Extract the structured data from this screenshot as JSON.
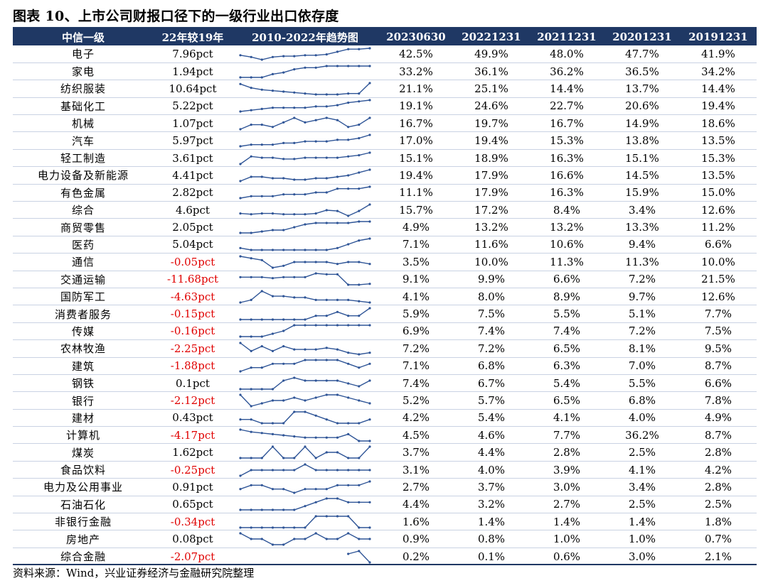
{
  "title": "图表 10、上市公司财报口径下的一级行业出口依存度",
  "source": "资料来源：Wind，兴业证券经济与金融研究院整理",
  "colors": {
    "header_bg": "#1f3864",
    "negative": "#e00000",
    "spark": "#2f5597"
  },
  "headers": [
    "中信一级",
    "22年较19年",
    "2010-2022年趋势图",
    "20230630",
    "20221231",
    "20211231",
    "20201231",
    "20191231"
  ],
  "rows": [
    {
      "industry": "电子",
      "change": "7.96pct",
      "negative": false,
      "values": [
        "42.5%",
        "49.9%",
        "48.0%",
        "47.7%",
        "41.9%"
      ],
      "trend": [
        31,
        29,
        26,
        29,
        30,
        30,
        31,
        31,
        32,
        35,
        38,
        38,
        39
      ]
    },
    {
      "industry": "家电",
      "change": "1.94pct",
      "negative": false,
      "values": [
        "33.2%",
        "36.1%",
        "36.2%",
        "36.5%",
        "34.2%"
      ],
      "trend": [
        28,
        28,
        28,
        30,
        31,
        33,
        34,
        34,
        35,
        35,
        35,
        35,
        35
      ]
    },
    {
      "industry": "纺织服装",
      "change": "10.64pct",
      "negative": false,
      "values": [
        "21.1%",
        "25.1%",
        "14.4%",
        "13.7%",
        "14.4%"
      ],
      "trend": [
        24,
        20,
        18,
        17,
        16,
        15,
        14,
        13,
        13,
        13,
        14,
        14,
        25
      ]
    },
    {
      "industry": "基础化工",
      "change": "5.22pct",
      "negative": false,
      "values": [
        "19.1%",
        "24.6%",
        "22.7%",
        "20.6%",
        "19.4%"
      ],
      "trend": [
        14,
        15,
        16,
        17,
        17,
        17,
        17,
        18,
        18,
        19,
        21,
        22,
        23
      ]
    },
    {
      "industry": "机械",
      "change": "1.07pct",
      "negative": false,
      "values": [
        "16.7%",
        "19.7%",
        "16.7%",
        "14.9%",
        "18.6%"
      ],
      "trend": [
        13,
        15,
        15,
        14,
        16,
        18,
        16,
        17,
        18,
        17,
        14,
        15,
        18
      ]
    },
    {
      "industry": "汽车",
      "change": "5.97pct",
      "negative": false,
      "values": [
        "17.0%",
        "19.4%",
        "15.3%",
        "13.8%",
        "13.5%"
      ],
      "trend": [
        11,
        12,
        12,
        12,
        13,
        13,
        14,
        14,
        14,
        15,
        15,
        16,
        18
      ]
    },
    {
      "industry": "轻工制造",
      "change": "3.61pct",
      "negative": false,
      "values": [
        "15.1%",
        "18.9%",
        "16.3%",
        "15.1%",
        "15.3%"
      ],
      "trend": [
        10,
        16,
        15,
        15,
        14,
        14,
        15,
        15,
        15,
        15,
        16,
        17,
        19
      ]
    },
    {
      "industry": "电力设备及新能源",
      "change": "4.41pct",
      "negative": false,
      "values": [
        "19.4%",
        "17.9%",
        "16.6%",
        "14.5%",
        "13.5%"
      ],
      "trend": [
        11,
        14,
        14,
        13,
        13,
        12,
        12,
        13,
        13,
        14,
        15,
        17,
        19
      ]
    },
    {
      "industry": "有色金属",
      "change": "2.82pct",
      "negative": false,
      "values": [
        "11.1%",
        "17.9%",
        "16.3%",
        "15.9%",
        "15.0%"
      ],
      "trend": [
        11,
        12,
        12,
        12,
        13,
        13,
        13,
        14,
        14,
        16,
        16,
        16,
        17
      ]
    },
    {
      "industry": "综合",
      "change": "4.6pct",
      "negative": false,
      "values": [
        "15.7%",
        "17.2%",
        "8.4%",
        "3.4%",
        "12.6%"
      ],
      "trend": [
        6,
        5,
        6,
        6,
        5,
        5,
        5,
        6,
        10,
        9,
        3,
        9,
        17
      ]
    },
    {
      "industry": "商贸零售",
      "change": "2.05pct",
      "negative": false,
      "values": [
        "4.9%",
        "13.2%",
        "13.2%",
        "13.3%",
        "11.2%"
      ],
      "trend": [
        5,
        5,
        6,
        7,
        7,
        9,
        11,
        12,
        12,
        12,
        12,
        13,
        13
      ]
    },
    {
      "industry": "医药",
      "change": "5.04pct",
      "negative": false,
      "values": [
        "7.1%",
        "11.6%",
        "10.6%",
        "9.4%",
        "6.6%"
      ],
      "trend": [
        7,
        6,
        6,
        6,
        6,
        6,
        6,
        6,
        6,
        7,
        9,
        11,
        12
      ]
    },
    {
      "industry": "通信",
      "change": "-0.05pct",
      "negative": true,
      "values": [
        "3.5%",
        "10.0%",
        "11.3%",
        "11.3%",
        "10.0%"
      ],
      "trend": [
        14,
        13,
        12,
        8,
        9,
        11,
        11,
        11,
        11,
        10,
        11,
        11,
        10
      ]
    },
    {
      "industry": "交通运输",
      "change": "-11.68pct",
      "negative": true,
      "values": [
        "9.1%",
        "9.9%",
        "6.6%",
        "7.2%",
        "21.5%"
      ],
      "trend": [
        18,
        18,
        18,
        17,
        18,
        18,
        18,
        22,
        21,
        21,
        10,
        10,
        11
      ]
    },
    {
      "industry": "国防军工",
      "change": "-4.63pct",
      "negative": true,
      "values": [
        "4.1%",
        "8.0%",
        "8.9%",
        "9.7%",
        "12.6%"
      ],
      "trend": [
        6,
        8,
        15,
        11,
        11,
        10,
        10,
        8,
        8,
        8,
        8,
        7,
        6
      ]
    },
    {
      "industry": "消费者服务",
      "change": "-0.15pct",
      "negative": true,
      "values": [
        "5.9%",
        "7.5%",
        "5.5%",
        "5.1%",
        "7.7%"
      ],
      "trend": [
        5,
        5,
        5,
        5,
        5,
        5,
        5,
        6,
        6,
        7,
        6,
        6,
        8
      ]
    },
    {
      "industry": "传媒",
      "change": "-0.16pct",
      "negative": true,
      "values": [
        "6.9%",
        "7.4%",
        "7.4%",
        "7.2%",
        "7.5%"
      ],
      "trend": [
        4,
        4,
        4,
        5,
        6,
        8,
        8,
        8,
        8,
        8,
        8,
        8,
        8
      ]
    },
    {
      "industry": "农林牧渔",
      "change": "-2.25pct",
      "negative": true,
      "values": [
        "7.2%",
        "7.2%",
        "6.5%",
        "8.1%",
        "9.5%"
      ],
      "trend": [
        13,
        8,
        11,
        8,
        11,
        9,
        9,
        9,
        10,
        9,
        7,
        6,
        7
      ]
    },
    {
      "industry": "建筑",
      "change": "-1.88pct",
      "negative": true,
      "values": [
        "7.1%",
        "6.8%",
        "6.3%",
        "7.0%",
        "8.7%"
      ],
      "trend": [
        5,
        6,
        6,
        7,
        7,
        7,
        8,
        8,
        8,
        8,
        7,
        6,
        7
      ]
    },
    {
      "industry": "钢铁",
      "change": "0.1pct",
      "negative": false,
      "values": [
        "7.4%",
        "6.7%",
        "5.4%",
        "5.5%",
        "6.6%"
      ],
      "trend": [
        4,
        4,
        4,
        4,
        7,
        8,
        7,
        7,
        7,
        7,
        6,
        5,
        7
      ]
    },
    {
      "industry": "银行",
      "change": "-2.12pct",
      "negative": true,
      "values": [
        "5.2%",
        "5.7%",
        "6.5%",
        "6.8%",
        "7.8%"
      ],
      "trend": [
        8,
        4,
        5,
        6,
        6,
        7,
        6,
        7,
        8,
        8,
        7,
        6,
        5
      ]
    },
    {
      "industry": "建材",
      "change": "0.43pct",
      "negative": false,
      "values": [
        "4.2%",
        "5.4%",
        "4.1%",
        "4.0%",
        "4.9%"
      ],
      "trend": [
        5,
        5,
        4,
        4,
        4,
        7,
        7,
        6,
        5,
        4,
        4,
        4,
        5
      ]
    },
    {
      "industry": "计算机",
      "change": "-4.17pct",
      "negative": true,
      "values": [
        "4.5%",
        "4.6%",
        "7.7%",
        "36.2%",
        "8.7%"
      ],
      "trend": [
        12,
        10,
        9,
        8,
        7,
        6,
        5,
        5,
        5,
        5,
        8,
        2,
        2
      ]
    },
    {
      "industry": "煤炭",
      "change": "1.62pct",
      "negative": false,
      "values": [
        "3.7%",
        "4.4%",
        "2.8%",
        "2.5%",
        "2.8%"
      ],
      "trend": [
        1,
        1,
        1,
        3,
        1,
        1,
        3,
        1,
        2,
        2,
        1,
        1,
        3
      ]
    },
    {
      "industry": "食品饮料",
      "change": "-0.25pct",
      "negative": true,
      "values": [
        "3.1%",
        "4.0%",
        "3.9%",
        "4.1%",
        "4.2%"
      ],
      "trend": [
        2,
        4,
        4,
        4,
        4,
        4,
        6,
        4,
        4,
        4,
        4,
        4,
        4
      ]
    },
    {
      "industry": "电力及公用事业",
      "change": "0.91pct",
      "negative": false,
      "values": [
        "2.7%",
        "3.7%",
        "3.0%",
        "3.4%",
        "2.8%"
      ],
      "trend": [
        2,
        3,
        3,
        2,
        2,
        1,
        2,
        2,
        2,
        3,
        3,
        3,
        4
      ]
    },
    {
      "industry": "石油石化",
      "change": "0.65pct",
      "negative": false,
      "values": [
        "4.4%",
        "3.2%",
        "2.7%",
        "2.5%",
        "2.5%"
      ],
      "trend": [
        1,
        1,
        1,
        1,
        1,
        1,
        2,
        3,
        4,
        4,
        3,
        3,
        3
      ]
    },
    {
      "industry": "非银行金融",
      "change": "-0.34pct",
      "negative": true,
      "values": [
        "1.6%",
        "1.4%",
        "1.4%",
        "1.4%",
        "1.8%"
      ],
      "trend": [
        1,
        1,
        1,
        1,
        1,
        1,
        1,
        2,
        2,
        2,
        2,
        1,
        1
      ]
    },
    {
      "industry": "房地产",
      "change": "0.08pct",
      "negative": false,
      "values": [
        "0.9%",
        "0.8%",
        "1.0%",
        "1.0%",
        "0.7%"
      ],
      "trend": [
        2,
        1,
        1,
        0,
        0,
        1,
        1,
        2,
        1,
        1,
        2,
        1,
        1
      ]
    },
    {
      "industry": "综合金融",
      "change": "-2.07pct",
      "negative": true,
      "values": [
        "0.2%",
        "0.1%",
        "0.6%",
        "3.0%",
        "2.1%"
      ],
      "trend": [
        null,
        null,
        null,
        null,
        null,
        null,
        null,
        null,
        null,
        null,
        3,
        4,
        0
      ]
    }
  ]
}
